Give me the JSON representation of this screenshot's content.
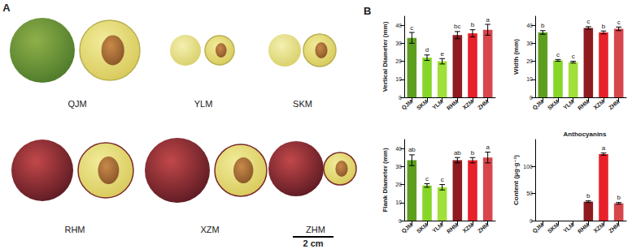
{
  "panel_a": {
    "label": "A",
    "fruits": [
      "QJM",
      "YLM",
      "SKM",
      "RHM",
      "XZM",
      "ZHM"
    ],
    "scale_bar": "2 cm"
  },
  "panel_b": {
    "label": "B"
  },
  "chart_data": [
    {
      "type": "bar",
      "y_label": "Vertical Diameter (mm)",
      "categories": [
        "QJM",
        "SKM",
        "YLM",
        "RHM",
        "XZM",
        "ZHM"
      ],
      "values": [
        33,
        22,
        20,
        34.5,
        35.5,
        37.5
      ],
      "errors": [
        3,
        1.5,
        1.5,
        2,
        2,
        3
      ],
      "letters": [
        "c",
        "d",
        "e",
        "bc",
        "b",
        "a"
      ],
      "colors": [
        "#5e9e1e",
        "#86d62a",
        "#9fe03a",
        "#8e1b1f",
        "#e8202a",
        "#d6464b"
      ],
      "ylim": [
        0,
        45
      ],
      "yticks": [
        0,
        10,
        20,
        30,
        40
      ],
      "grid": false
    },
    {
      "type": "bar",
      "y_label": "Width (mm)",
      "categories": [
        "QJM",
        "SKM",
        "YLM",
        "RHM",
        "XZM",
        "ZHM"
      ],
      "values": [
        36,
        20.5,
        19.5,
        38.5,
        36,
        38
      ],
      "errors": [
        1,
        0.5,
        0.5,
        0.7,
        0.8,
        1
      ],
      "letters": [
        "b",
        "c",
        "c",
        "c",
        "b",
        "c"
      ],
      "colors": [
        "#5e9e1e",
        "#86d62a",
        "#9fe03a",
        "#8e1b1f",
        "#e8202a",
        "#d6464b"
      ],
      "ylim": [
        0,
        45
      ],
      "yticks": [
        0,
        10,
        20,
        30,
        40
      ],
      "grid": false
    },
    {
      "type": "bar",
      "y_label": "Flank Diameter (mm)",
      "categories": [
        "QJM",
        "SKM",
        "YLM",
        "RHM",
        "XZM",
        "ZHM"
      ],
      "values": [
        33.5,
        19.5,
        18.5,
        33.5,
        33.5,
        35
      ],
      "errors": [
        3,
        1,
        1.5,
        1.5,
        1.5,
        3
      ],
      "letters": [
        "ab",
        "c",
        "c",
        "ab",
        "b",
        "a"
      ],
      "colors": [
        "#5e9e1e",
        "#86d62a",
        "#9fe03a",
        "#8e1b1f",
        "#e8202a",
        "#d6464b"
      ],
      "ylim": [
        0,
        45
      ],
      "yticks": [
        0,
        10,
        20,
        30,
        40
      ],
      "grid": false
    },
    {
      "type": "bar",
      "title": "Anthocyanins",
      "y_label": "Content (μg·g⁻¹)",
      "categories": [
        "QJM",
        "SKM",
        "YLM",
        "RHM",
        "XZM",
        "ZHM"
      ],
      "values": [
        0,
        0,
        0,
        35,
        123,
        32
      ],
      "errors": [
        0,
        0,
        0,
        1.5,
        2,
        1.5
      ],
      "letters": [
        null,
        null,
        null,
        "b",
        "a",
        "b"
      ],
      "colors": [
        "#5e9e1e",
        "#86d62a",
        "#9fe03a",
        "#8e1b1f",
        "#e8202a",
        "#d6464b"
      ],
      "ylim": [
        0,
        150
      ],
      "yticks": [
        0,
        50,
        100
      ],
      "grid": false
    }
  ]
}
